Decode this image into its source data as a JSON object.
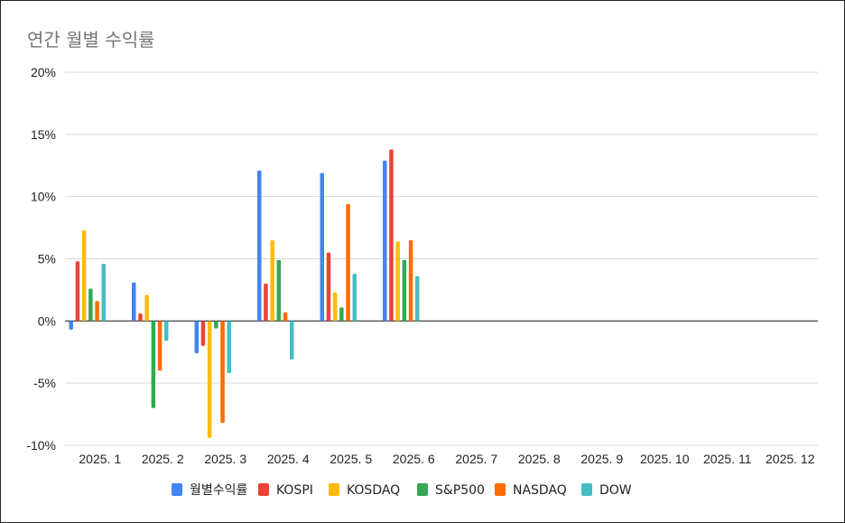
{
  "chart_data": {
    "type": "bar",
    "title": "연간 월별 수익률",
    "categories": [
      "2025. 1",
      "2025. 2",
      "2025. 3",
      "2025. 4",
      "2025. 5",
      "2025. 6",
      "2025. 7",
      "2025. 8",
      "2025. 9",
      "2025. 10",
      "2025. 11",
      "2025. 12"
    ],
    "y_ticks": [
      "20%",
      "15%",
      "10%",
      "5%",
      "0%",
      "-5%",
      "-10%"
    ],
    "ylim": [
      -10,
      20
    ],
    "y_unit": "%",
    "grid": true,
    "legend_position": "bottom",
    "series": [
      {
        "name": "월별수익률",
        "color": "#4285F4",
        "values": [
          -0.7,
          3.1,
          -2.6,
          12.1,
          11.9,
          12.9,
          null,
          null,
          null,
          null,
          null,
          null
        ]
      },
      {
        "name": "KOSPI",
        "color": "#EA4335",
        "values": [
          4.8,
          0.6,
          -2.0,
          3.0,
          5.5,
          13.8,
          null,
          null,
          null,
          null,
          null,
          null
        ]
      },
      {
        "name": "KOSDAQ",
        "color": "#FBBC04",
        "values": [
          7.3,
          2.1,
          -9.4,
          6.5,
          2.3,
          6.4,
          null,
          null,
          null,
          null,
          null,
          null
        ]
      },
      {
        "name": "S&P500",
        "color": "#34A853",
        "values": [
          2.6,
          -7.0,
          -0.6,
          4.9,
          1.1,
          4.9,
          null,
          null,
          null,
          null,
          null,
          null
        ]
      },
      {
        "name": "NASDAQ",
        "color": "#FF6D01",
        "values": [
          1.6,
          -4.0,
          -8.2,
          0.7,
          9.4,
          6.5,
          null,
          null,
          null,
          null,
          null,
          null
        ]
      },
      {
        "name": "DOW",
        "color": "#46BDC6",
        "values": [
          4.6,
          -1.6,
          -4.2,
          -3.1,
          3.8,
          3.6,
          null,
          null,
          null,
          null,
          null,
          null
        ]
      }
    ]
  }
}
